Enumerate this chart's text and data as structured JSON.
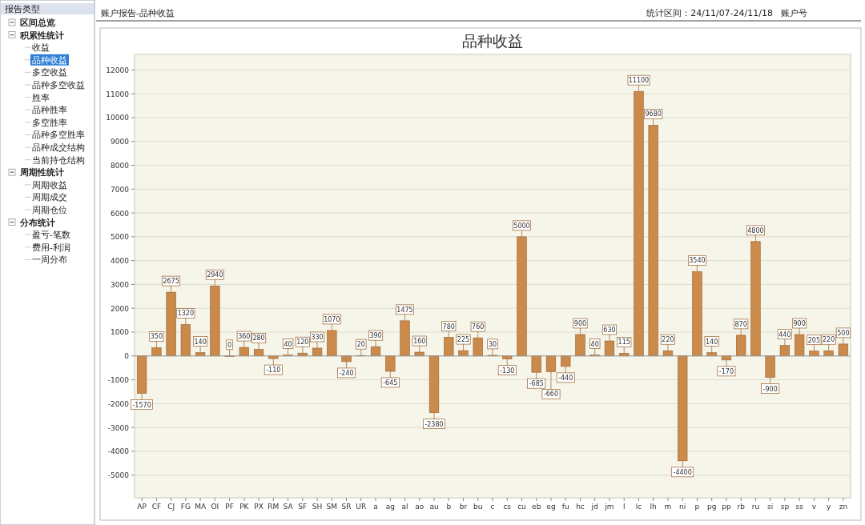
{
  "chart_data": [
    {
      "type": "bar",
      "title": "品种收益",
      "annotations": [
        "账户报告-品种收益",
        "统计区间：24/11/07-24/11/18",
        "账户号"
      ],
      "categories": [
        "AP",
        "CF",
        "CJ",
        "FG",
        "MA",
        "OI",
        "PF",
        "PK",
        "PX",
        "RM",
        "SA",
        "SF",
        "SH",
        "SM",
        "SR",
        "UR",
        "a",
        "ag",
        "al",
        "ao",
        "au",
        "b",
        "br",
        "bu",
        "c",
        "cs",
        "cu",
        "eb",
        "eg",
        "fu",
        "hc",
        "jd",
        "jm",
        "l",
        "lc",
        "lh",
        "m",
        "ni",
        "p",
        "pg",
        "pp",
        "rb",
        "ru",
        "si",
        "sp",
        "ss",
        "v",
        "y",
        "zn"
      ],
      "values": [
        -1570,
        350,
        2675,
        1320,
        140,
        2940,
        0,
        360,
        280,
        -110,
        40,
        120,
        330,
        1070,
        -240,
        20,
        390,
        -645,
        1475,
        160,
        -2380,
        780,
        225,
        760,
        30,
        -130,
        5000,
        -685,
        -660,
        -440,
        900,
        40,
        630,
        115,
        11100,
        9680,
        220,
        -4400,
        3540,
        140,
        -170,
        870,
        4800,
        -900,
        440,
        900,
        205,
        220,
        500
      ],
      "color": "#c98a4b",
      "ylim": [
        -5950,
        12650
      ],
      "yticks": [
        -5000,
        -4000,
        -3000,
        -2000,
        -1000,
        0,
        1000,
        2000,
        3000,
        4000,
        5000,
        6000,
        7000,
        8000,
        9000,
        10000,
        11000,
        12000
      ],
      "grid": "y",
      "data_labels": true
    },
    {
      "type": "other",
      "title": "报告类型",
      "annotations": [
        "区间总览",
        "积累性统计",
        "收益",
        "品种收益",
        "多空收益",
        "品种多空收益",
        "胜率",
        "品种胜率",
        "多空胜率",
        "品种多空胜率",
        "品种成交结构",
        "当前持仓结构",
        "周期性统计",
        "周期收益",
        "周期成交",
        "周期仓位",
        "分布统计",
        "盈亏-笔数",
        "费用-利润",
        "一周分布"
      ]
    }
  ]
}
